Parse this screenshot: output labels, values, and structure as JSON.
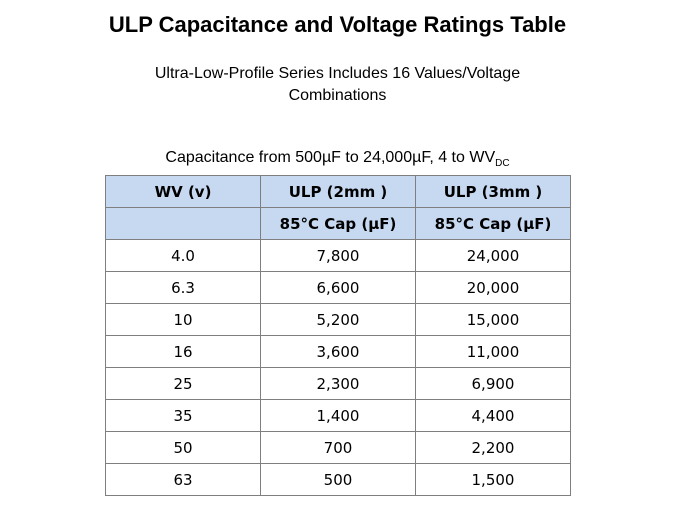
{
  "title": "ULP Capacitance and Voltage Ratings Table",
  "subtitle_line1": "Ultra-Low-Profile Series Includes 16 Values/Voltage",
  "subtitle_line2": "Combinations",
  "caption": {
    "text": "Capacitance from 500µF to 24,000µF, 4 to WV",
    "subscript": "DC"
  },
  "table": {
    "headers": [
      "WV (v)",
      "ULP (2mm )",
      "ULP (3mm )"
    ],
    "subheaders": [
      "",
      "85°C Cap (µF)",
      "85°C Cap (µF)"
    ],
    "rows": [
      [
        "4.0",
        "7,800",
        "24,000"
      ],
      [
        "6.3",
        "6,600",
        "20,000"
      ],
      [
        "10",
        "5,200",
        "15,000"
      ],
      [
        "16",
        "3,600",
        "11,000"
      ],
      [
        "25",
        "2,300",
        "6,900"
      ],
      [
        "35",
        "1,400",
        "4,400"
      ],
      [
        "50",
        "700",
        "2,200"
      ],
      [
        "63",
        "500",
        "1,500"
      ]
    ],
    "header_color": "#c6d9f1",
    "border_color": "#7f7f7f"
  }
}
